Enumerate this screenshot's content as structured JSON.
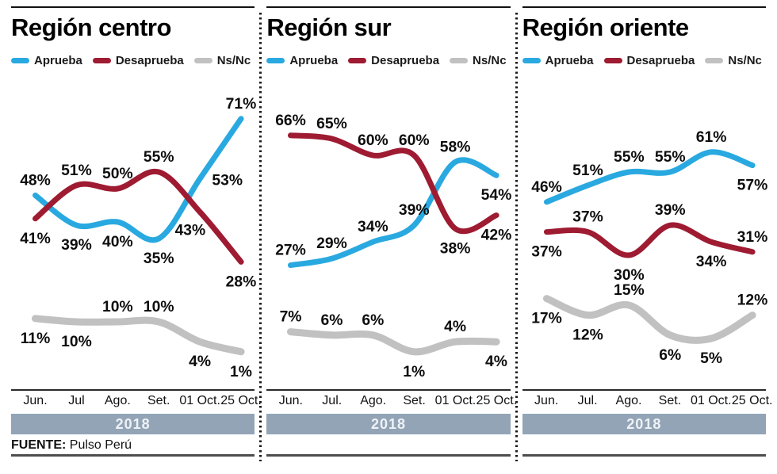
{
  "year_band": "2018",
  "source": {
    "label": "FUENTE:",
    "value": "Pulso Perú"
  },
  "legend": {
    "items": [
      {
        "label": "Aprueba",
        "color": "#29a9e0"
      },
      {
        "label": "Desaprueba",
        "color": "#9e1b32"
      },
      {
        "label": "Ns/Nc",
        "color": "#c1c1c1"
      }
    ]
  },
  "colors": {
    "aprueba": "#29a9e0",
    "desaprueba": "#9e1b32",
    "nsnc": "#c1c1c1",
    "year_band_bg": "#93a4b7",
    "year_band_text": "#eef2f5",
    "axis": "#2b2b2b",
    "label_text": "#0d0d0d"
  },
  "chart_data": [
    {
      "type": "line",
      "title": "Región centro",
      "x": [
        "Jun.",
        "Jul",
        "Ago.",
        "Set.",
        "01 Oct.",
        "25 Oct."
      ],
      "ylim": [
        0,
        80
      ],
      "grid": false,
      "legend_position": "top",
      "series": [
        {
          "name": "Aprueba",
          "color": "#29a9e0",
          "values": [
            48,
            39,
            40,
            35,
            53,
            71
          ],
          "label_pos": [
            "above",
            "below",
            "below",
            "below",
            "right",
            "above"
          ]
        },
        {
          "name": "Desaprueba",
          "color": "#9e1b32",
          "values": [
            41,
            51,
            50,
            55,
            43,
            28
          ],
          "label_pos": [
            "below",
            "above",
            "above",
            "above",
            "below-left",
            "below"
          ]
        },
        {
          "name": "Ns/Nc",
          "color": "#c1c1c1",
          "values": [
            11,
            10,
            10,
            10,
            4,
            1
          ],
          "label_pos": [
            "below",
            "below",
            "above",
            "above",
            "below",
            "below"
          ]
        }
      ]
    },
    {
      "type": "line",
      "title": "Región sur",
      "x": [
        "Jun.",
        "Jul.",
        "Ago.",
        "Set.",
        "01 Oct.",
        "25 Oct."
      ],
      "ylim": [
        0,
        80
      ],
      "grid": false,
      "legend_position": "top",
      "series": [
        {
          "name": "Aprueba",
          "color": "#29a9e0",
          "values": [
            27,
            29,
            34,
            39,
            58,
            54
          ],
          "label_pos": [
            "above",
            "above",
            "above",
            "above",
            "above",
            "below"
          ]
        },
        {
          "name": "Desaprueba",
          "color": "#9e1b32",
          "values": [
            66,
            65,
            60,
            60,
            38,
            42
          ],
          "label_pos": [
            "above",
            "above",
            "above",
            "above",
            "below",
            "below"
          ]
        },
        {
          "name": "Ns/Nc",
          "color": "#c1c1c1",
          "values": [
            7,
            6,
            6,
            1,
            4,
            4
          ],
          "label_pos": [
            "above",
            "above",
            "above",
            "below",
            "above",
            "below"
          ]
        }
      ]
    },
    {
      "type": "line",
      "title": "Región oriente",
      "x": [
        "Jun.",
        "Jul.",
        "Ago.",
        "Set.",
        "01 Oct.",
        "25 Oct."
      ],
      "ylim": [
        0,
        80
      ],
      "grid": false,
      "legend_position": "top",
      "series": [
        {
          "name": "Aprueba",
          "color": "#29a9e0",
          "values": [
            46,
            51,
            55,
            55,
            61,
            57
          ],
          "label_pos": [
            "above",
            "above",
            "above",
            "above",
            "above",
            "below"
          ]
        },
        {
          "name": "Desaprueba",
          "color": "#9e1b32",
          "values": [
            37,
            37,
            30,
            39,
            34,
            31
          ],
          "label_pos": [
            "below",
            "above",
            "below",
            "above",
            "below",
            "above"
          ]
        },
        {
          "name": "Ns/Nc",
          "color": "#c1c1c1",
          "values": [
            17,
            12,
            15,
            6,
            5,
            12
          ],
          "label_pos": [
            "below",
            "below",
            "above",
            "below",
            "below",
            "above"
          ]
        }
      ]
    }
  ]
}
